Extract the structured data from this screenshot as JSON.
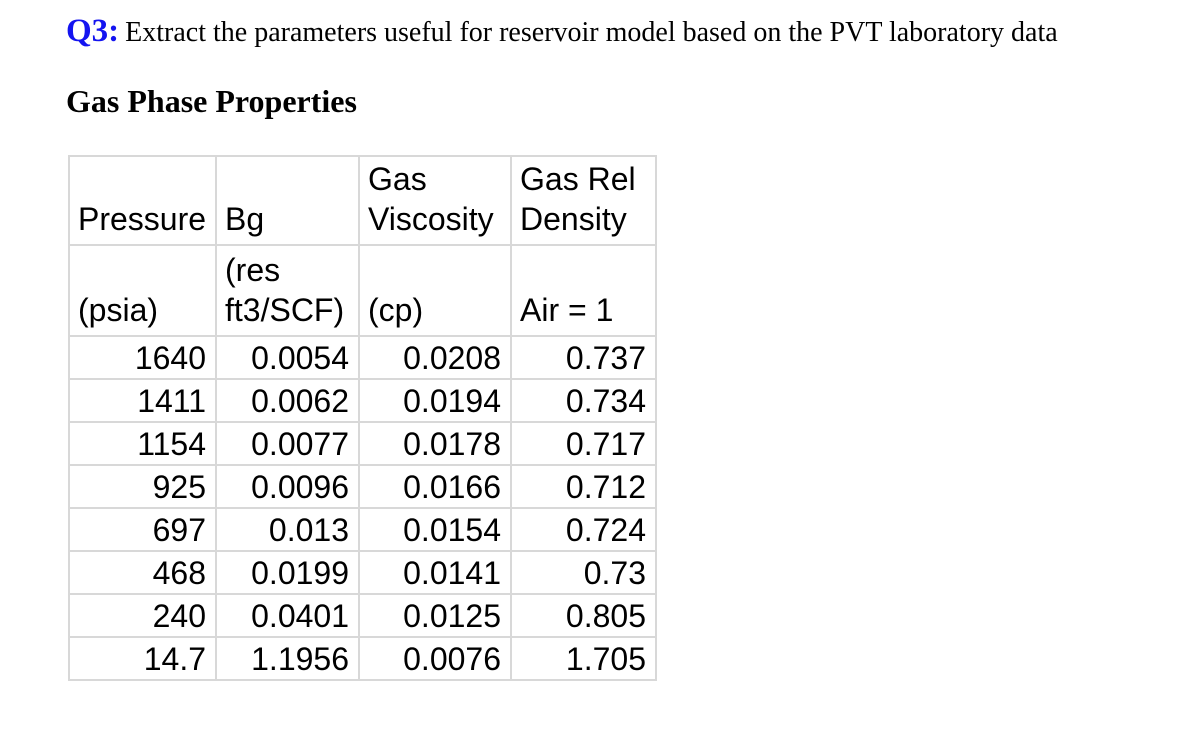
{
  "question": {
    "label": "Q3:",
    "text": "Extract the parameters useful for reservoir model based on the PVT laboratory data"
  },
  "section": {
    "heading": "Gas Phase Properties"
  },
  "table": {
    "columns": [
      {
        "name": "pressure",
        "title": "Pressure",
        "unit": "(psia)"
      },
      {
        "name": "bg",
        "title": "Bg",
        "unit": "(res\nft3/SCF)"
      },
      {
        "name": "gas-viscosity",
        "title": "Gas\nViscosity",
        "unit": "(cp)"
      },
      {
        "name": "gas-rel-density",
        "title": "Gas Rel\nDensity",
        "unit": "Air = 1"
      }
    ],
    "rows": [
      [
        "1640",
        "0.0054",
        "0.0208",
        "0.737"
      ],
      [
        "1411",
        "0.0062",
        "0.0194",
        "0.734"
      ],
      [
        "1154",
        "0.0077",
        "0.0178",
        "0.717"
      ],
      [
        "925",
        "0.0096",
        "0.0166",
        "0.712"
      ],
      [
        "697",
        "0.013",
        "0.0154",
        "0.724"
      ],
      [
        "468",
        "0.0199",
        "0.0141",
        "0.73"
      ],
      [
        "240",
        "0.0401",
        "0.0125",
        "0.805"
      ],
      [
        "14.7",
        "1.1956",
        "0.0076",
        "1.705"
      ]
    ]
  },
  "colors": {
    "question_label_blue": "#1414f0",
    "text": "#000000",
    "table_border": "#d8d8d8",
    "background": "#ffffff"
  }
}
